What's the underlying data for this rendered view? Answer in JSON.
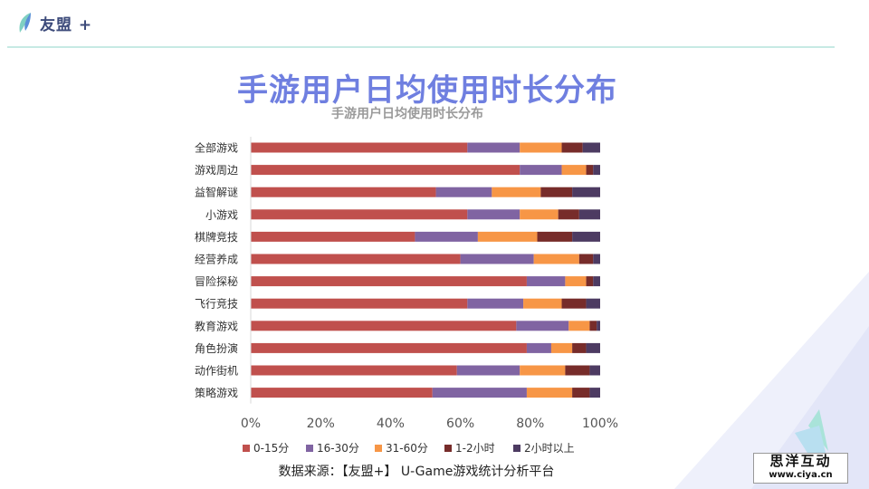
{
  "header": {
    "logo_text": "友盟 +"
  },
  "page_title": "手游用户日均使用时长分布",
  "source_text": "数据来源：【友盟+】 U-Game游戏统计分析平台",
  "watermark": {
    "cn": "思洋互动",
    "url": "www.ciya.cn"
  },
  "colors": {
    "title": "#6f7fe0",
    "accent_line": "#8fd6c8"
  },
  "chart_data": {
    "type": "bar",
    "orientation": "horizontal",
    "stacked": true,
    "title": "手游用户日均使用时长分布",
    "categories": [
      "全部游戏",
      "游戏周边",
      "益智解谜",
      "小游戏",
      "棋牌竞技",
      "经营养成",
      "冒险探秘",
      "飞行竞技",
      "教育游戏",
      "角色扮演",
      "动作街机",
      "策略游戏"
    ],
    "series": [
      {
        "name": "0-15分",
        "color": "#c0504d",
        "values": [
          62,
          77,
          53,
          62,
          47,
          60,
          79,
          62,
          76,
          79,
          59,
          52
        ]
      },
      {
        "name": "16-30分",
        "color": "#8064a2",
        "values": [
          15,
          12,
          16,
          15,
          18,
          21,
          11,
          16,
          15,
          7,
          18,
          27
        ]
      },
      {
        "name": "31-60分",
        "color": "#f79646",
        "values": [
          12,
          7,
          14,
          11,
          17,
          13,
          6,
          11,
          6,
          6,
          13,
          13
        ]
      },
      {
        "name": "1-2小时",
        "color": "#772c2a",
        "values": [
          6,
          2,
          9,
          6,
          10,
          4,
          2,
          7,
          2,
          4,
          7,
          5
        ]
      },
      {
        "name": "2小时以上",
        "color": "#4d3b62",
        "values": [
          5,
          2,
          8,
          6,
          8,
          2,
          2,
          4,
          1,
          4,
          3,
          3
        ]
      }
    ],
    "x_ticks": [
      "0%",
      "20%",
      "40%",
      "60%",
      "80%",
      "100%"
    ],
    "xlim": [
      0,
      100
    ],
    "grid": false,
    "legend_position": "bottom"
  }
}
